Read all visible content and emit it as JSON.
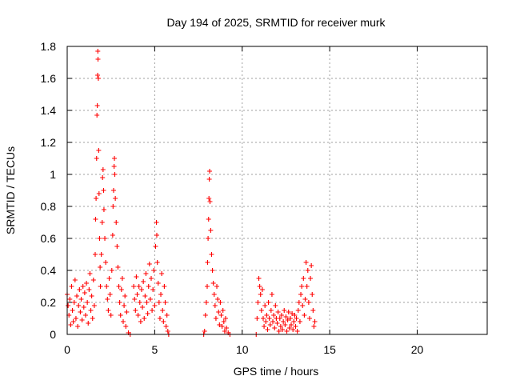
{
  "chart_data": {
    "type": "scatter",
    "title": "Day 194 of 2025, SRMTID for receiver murk",
    "xlabel": "GPS time / hours",
    "ylabel": "SRMTID / TECUs",
    "xlim": [
      0,
      24
    ],
    "ylim": [
      0,
      1.8
    ],
    "grid": true,
    "marker": "+",
    "color": "#ff0000",
    "x_ticks": [
      {
        "value": 0,
        "label": "0"
      },
      {
        "value": 5,
        "label": "5"
      },
      {
        "value": 10,
        "label": "10"
      },
      {
        "value": 15,
        "label": "15"
      },
      {
        "value": 20,
        "label": "20"
      }
    ],
    "y_ticks": [
      {
        "value": 0,
        "label": "0"
      },
      {
        "value": 0.2,
        "label": "0.2"
      },
      {
        "value": 0.4,
        "label": "0.4"
      },
      {
        "value": 0.6,
        "label": "0.6"
      },
      {
        "value": 0.8,
        "label": "0.8"
      },
      {
        "value": 1.0,
        "label": "1"
      },
      {
        "value": 1.2,
        "label": "1.2"
      },
      {
        "value": 1.4,
        "label": "1.4"
      },
      {
        "value": 1.6,
        "label": "1.6"
      },
      {
        "value": 1.8,
        "label": "1.8"
      }
    ],
    "series": [
      {
        "name": "SRMTID",
        "points": [
          [
            0.0,
            0.25
          ],
          [
            0.05,
            0.18
          ],
          [
            0.1,
            0.12
          ],
          [
            0.15,
            0.22
          ],
          [
            0.2,
            0.06
          ],
          [
            0.25,
            0.3
          ],
          [
            0.3,
            0.15
          ],
          [
            0.35,
            0.08
          ],
          [
            0.4,
            0.2
          ],
          [
            0.45,
            0.34
          ],
          [
            0.5,
            0.1
          ],
          [
            0.55,
            0.24
          ],
          [
            0.6,
            0.05
          ],
          [
            0.65,
            0.18
          ],
          [
            0.7,
            0.28
          ],
          [
            0.75,
            0.14
          ],
          [
            0.8,
            0.22
          ],
          [
            0.85,
            0.09
          ],
          [
            0.9,
            0.3
          ],
          [
            0.95,
            0.17
          ],
          [
            1.0,
            0.26
          ],
          [
            1.05,
            0.12
          ],
          [
            1.1,
            0.32
          ],
          [
            1.15,
            0.2
          ],
          [
            1.2,
            0.07
          ],
          [
            1.25,
            0.28
          ],
          [
            1.3,
            0.38
          ],
          [
            1.35,
            0.15
          ],
          [
            1.4,
            0.24
          ],
          [
            1.45,
            0.1
          ],
          [
            1.5,
            0.34
          ],
          [
            1.55,
            0.18
          ],
          [
            1.6,
            0.5
          ],
          [
            1.62,
            0.72
          ],
          [
            1.65,
            0.85
          ],
          [
            1.68,
            1.1
          ],
          [
            1.7,
            1.37
          ],
          [
            1.72,
            1.43
          ],
          [
            1.74,
            1.62
          ],
          [
            1.75,
            1.77
          ],
          [
            1.76,
            1.72
          ],
          [
            1.78,
            1.6
          ],
          [
            1.8,
            1.15
          ],
          [
            1.82,
            0.88
          ],
          [
            1.85,
            0.6
          ],
          [
            1.88,
            0.42
          ],
          [
            1.9,
            0.3
          ],
          [
            1.95,
            0.5
          ],
          [
            2.0,
            0.7
          ],
          [
            2.02,
            0.98
          ],
          [
            2.05,
            1.03
          ],
          [
            2.08,
            0.9
          ],
          [
            2.1,
            0.78
          ],
          [
            2.15,
            0.6
          ],
          [
            2.2,
            0.45
          ],
          [
            2.25,
            0.3
          ],
          [
            2.3,
            0.22
          ],
          [
            2.35,
            0.15
          ],
          [
            2.4,
            0.35
          ],
          [
            2.45,
            0.25
          ],
          [
            2.5,
            0.12
          ],
          [
            2.55,
            0.4
          ],
          [
            2.6,
            0.62
          ],
          [
            2.62,
            0.8
          ],
          [
            2.65,
            0.9
          ],
          [
            2.68,
            1.05
          ],
          [
            2.7,
            1.1
          ],
          [
            2.72,
            1.0
          ],
          [
            2.75,
            0.85
          ],
          [
            2.8,
            0.7
          ],
          [
            2.85,
            0.55
          ],
          [
            2.9,
            0.42
          ],
          [
            2.95,
            0.3
          ],
          [
            3.0,
            0.2
          ],
          [
            3.05,
            0.12
          ],
          [
            3.1,
            0.28
          ],
          [
            3.15,
            0.35
          ],
          [
            3.2,
            0.08
          ],
          [
            3.25,
            0.18
          ],
          [
            3.3,
            0.24
          ],
          [
            3.35,
            0.05
          ],
          [
            3.4,
            0.14
          ],
          [
            3.5,
            0.01
          ],
          [
            3.6,
            0.0
          ],
          [
            3.8,
            0.3
          ],
          [
            3.85,
            0.22
          ],
          [
            3.9,
            0.15
          ],
          [
            3.95,
            0.36
          ],
          [
            4.0,
            0.25
          ],
          [
            4.05,
            0.12
          ],
          [
            4.1,
            0.3
          ],
          [
            4.15,
            0.2
          ],
          [
            4.2,
            0.08
          ],
          [
            4.25,
            0.28
          ],
          [
            4.3,
            0.17
          ],
          [
            4.35,
            0.33
          ],
          [
            4.4,
            0.1
          ],
          [
            4.45,
            0.24
          ],
          [
            4.5,
            0.38
          ],
          [
            4.55,
            0.2
          ],
          [
            4.6,
            0.13
          ],
          [
            4.65,
            0.3
          ],
          [
            4.7,
            0.44
          ],
          [
            4.75,
            0.22
          ],
          [
            4.8,
            0.35
          ],
          [
            4.85,
            0.15
          ],
          [
            4.9,
            0.28
          ],
          [
            4.95,
            0.4
          ],
          [
            5.0,
            0.18
          ],
          [
            5.05,
            0.55
          ],
          [
            5.1,
            0.7
          ],
          [
            5.12,
            0.62
          ],
          [
            5.15,
            0.45
          ],
          [
            5.2,
            0.32
          ],
          [
            5.25,
            0.2
          ],
          [
            5.3,
            0.1
          ],
          [
            5.35,
            0.25
          ],
          [
            5.4,
            0.38
          ],
          [
            5.45,
            0.15
          ],
          [
            5.5,
            0.08
          ],
          [
            5.55,
            0.3
          ],
          [
            5.6,
            0.2
          ],
          [
            5.65,
            0.05
          ],
          [
            5.7,
            0.12
          ],
          [
            5.75,
            0.02
          ],
          [
            5.8,
            0.0
          ],
          [
            7.8,
            0.0
          ],
          [
            7.85,
            0.02
          ],
          [
            7.9,
            0.12
          ],
          [
            7.95,
            0.2
          ],
          [
            8.0,
            0.3
          ],
          [
            8.02,
            0.45
          ],
          [
            8.05,
            0.6
          ],
          [
            8.08,
            0.72
          ],
          [
            8.1,
            0.85
          ],
          [
            8.12,
            0.97
          ],
          [
            8.14,
            1.02
          ],
          [
            8.16,
            0.83
          ],
          [
            8.2,
            0.65
          ],
          [
            8.25,
            0.5
          ],
          [
            8.3,
            0.4
          ],
          [
            8.35,
            0.32
          ],
          [
            8.4,
            0.25
          ],
          [
            8.45,
            0.18
          ],
          [
            8.5,
            0.1
          ],
          [
            8.55,
            0.3
          ],
          [
            8.6,
            0.22
          ],
          [
            8.65,
            0.14
          ],
          [
            8.7,
            0.06
          ],
          [
            8.75,
            0.2
          ],
          [
            8.8,
            0.12
          ],
          [
            8.85,
            0.05
          ],
          [
            8.9,
            0.15
          ],
          [
            8.95,
            0.08
          ],
          [
            9.0,
            0.02
          ],
          [
            9.05,
            0.1
          ],
          [
            9.1,
            0.04
          ],
          [
            9.2,
            0.01
          ],
          [
            9.3,
            0.0
          ],
          [
            10.8,
            0.0
          ],
          [
            10.85,
            0.1
          ],
          [
            10.9,
            0.2
          ],
          [
            10.95,
            0.35
          ],
          [
            11.0,
            0.3
          ],
          [
            11.05,
            0.25
          ],
          [
            11.1,
            0.15
          ],
          [
            11.15,
            0.28
          ],
          [
            11.2,
            0.1
          ],
          [
            11.25,
            0.05
          ],
          [
            11.3,
            0.18
          ],
          [
            11.35,
            0.08
          ],
          [
            11.4,
            0.12
          ],
          [
            11.45,
            0.03
          ],
          [
            11.5,
            0.2
          ],
          [
            11.55,
            0.1
          ],
          [
            11.6,
            0.06
          ],
          [
            11.65,
            0.15
          ],
          [
            11.7,
            0.25
          ],
          [
            11.75,
            0.08
          ],
          [
            11.8,
            0.12
          ],
          [
            11.85,
            0.04
          ],
          [
            11.9,
            0.18
          ],
          [
            11.95,
            0.1
          ],
          [
            12.0,
            0.07
          ],
          [
            12.05,
            0.14
          ],
          [
            12.1,
            0.02
          ],
          [
            12.15,
            0.1
          ],
          [
            12.2,
            0.05
          ],
          [
            12.25,
            0.12
          ],
          [
            12.3,
            0.03
          ],
          [
            12.35,
            0.08
          ],
          [
            12.4,
            0.15
          ],
          [
            12.45,
            0.06
          ],
          [
            12.5,
            0.11
          ],
          [
            12.55,
            0.02
          ],
          [
            12.6,
            0.09
          ],
          [
            12.65,
            0.14
          ],
          [
            12.7,
            0.04
          ],
          [
            12.75,
            0.1
          ],
          [
            12.8,
            0.06
          ],
          [
            12.85,
            0.13
          ],
          [
            12.9,
            0.03
          ],
          [
            12.95,
            0.08
          ],
          [
            13.0,
            0.12
          ],
          [
            13.05,
            0.05
          ],
          [
            13.1,
            0.1
          ],
          [
            13.15,
            0.02
          ],
          [
            13.2,
            0.15
          ],
          [
            13.25,
            0.2
          ],
          [
            13.3,
            0.08
          ],
          [
            13.35,
            0.25
          ],
          [
            13.4,
            0.3
          ],
          [
            13.45,
            0.18
          ],
          [
            13.5,
            0.35
          ],
          [
            13.55,
            0.12
          ],
          [
            13.6,
            0.22
          ],
          [
            13.65,
            0.45
          ],
          [
            13.7,
            0.3
          ],
          [
            13.75,
            0.4
          ],
          [
            13.8,
            0.2
          ],
          [
            13.85,
            0.1
          ],
          [
            13.9,
            0.35
          ],
          [
            13.95,
            0.43
          ],
          [
            14.0,
            0.25
          ],
          [
            14.05,
            0.15
          ],
          [
            14.1,
            0.05
          ],
          [
            14.15,
            0.08
          ]
        ]
      }
    ]
  }
}
